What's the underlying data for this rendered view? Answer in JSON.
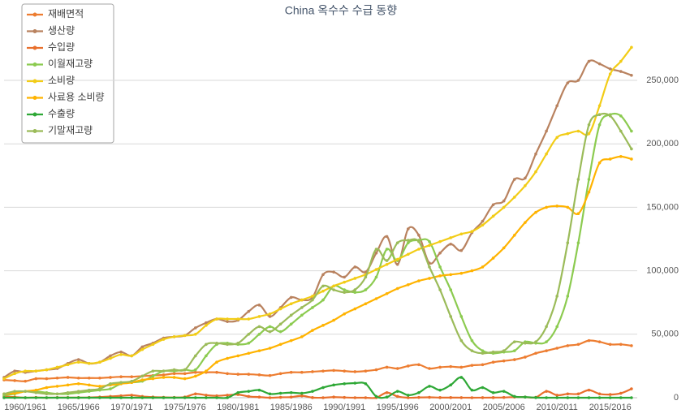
{
  "chart_data": {
    "type": "line",
    "title": "China 옥수수 수급 동향",
    "categories": [
      null,
      null,
      "1960/1961",
      null,
      null,
      null,
      null,
      "1965/1966",
      null,
      null,
      null,
      null,
      "1970/1971",
      null,
      null,
      null,
      null,
      "1975/1976",
      null,
      null,
      null,
      null,
      "1980/1981",
      null,
      null,
      null,
      null,
      "1985/1986",
      null,
      null,
      null,
      null,
      "1990/1991",
      null,
      null,
      null,
      null,
      "1995/1996",
      null,
      null,
      null,
      null,
      "2000/2001",
      null,
      null,
      null,
      null,
      "2005/2006",
      null,
      null,
      null,
      null,
      "2010/2011",
      null,
      null,
      null,
      null,
      "2015/2016",
      null,
      null
    ],
    "ylim": [
      0,
      300000
    ],
    "yticks": [
      0,
      {
        "value": 50000,
        "label": "50,000"
      },
      {
        "value": 100000,
        "label": "100,000"
      },
      {
        "value": 150000,
        "label": "150,000"
      },
      {
        "value": 200000,
        "label": "200,000"
      },
      {
        "value": 250000,
        "label": "250,000"
      }
    ],
    "grid": true,
    "legend": "top-left",
    "series": [
      {
        "name": "재배면적",
        "color": "#ed7d31",
        "values": [
          14000,
          13500,
          13000,
          15000,
          15000,
          15500,
          16000,
          15500,
          15500,
          15500,
          16000,
          16500,
          16500,
          17000,
          17500,
          18000,
          19000,
          19000,
          20000,
          20000,
          20000,
          19000,
          18500,
          18500,
          18000,
          17500,
          19000,
          20000,
          20000,
          20500,
          21000,
          21500,
          21000,
          20500,
          21000,
          22000,
          24000,
          23000,
          25000,
          26000,
          23000,
          24000,
          24500,
          24000,
          25500,
          26000,
          28000,
          29000,
          30000,
          32000,
          35000,
          37000,
          39000,
          41000,
          42000,
          45000,
          44000,
          42000,
          42000,
          41000
        ]
      },
      {
        "name": "생산량",
        "color": "#b9825f",
        "values": [
          16000,
          21000,
          20000,
          21000,
          22000,
          23000,
          27000,
          30000,
          27000,
          28000,
          33000,
          36000,
          33000,
          40000,
          43000,
          47000,
          48000,
          49000,
          55000,
          59000,
          62000,
          60000,
          61000,
          68000,
          73000,
          64000,
          71000,
          79000,
          77000,
          79000,
          97000,
          99000,
          95000,
          103000,
          99000,
          114000,
          127000,
          105000,
          133000,
          128000,
          106000,
          114000,
          121000,
          116000,
          130000,
          139000,
          152000,
          155000,
          172000,
          173000,
          192000,
          210000,
          230000,
          248000,
          250000,
          265000,
          263000,
          259000,
          257000,
          254000
        ]
      },
      {
        "name": "수입량",
        "color": "#e86f2c",
        "values": [
          1000,
          500,
          0,
          200,
          0,
          100,
          100,
          100,
          200,
          500,
          1000,
          1500,
          2000,
          1000,
          500,
          300,
          200,
          500,
          3000,
          2000,
          1500,
          2000,
          2500,
          1000,
          500,
          0,
          300,
          500,
          1500,
          100,
          0,
          500,
          200,
          0,
          0,
          0,
          4000,
          1000,
          0,
          200,
          300,
          100,
          100,
          50,
          0,
          50,
          100,
          200,
          500,
          500,
          300,
          5000,
          2000,
          3000,
          3000,
          6000,
          3000,
          2500,
          3500,
          7000
        ]
      },
      {
        "name": "이월재고량",
        "color": "#8ccb50",
        "values": [
          2000,
          3000,
          5000,
          5000,
          4000,
          3000,
          3000,
          4000,
          5000,
          6000,
          7000,
          11000,
          12000,
          13000,
          17000,
          21000,
          21000,
          22000,
          22000,
          33000,
          42000,
          43000,
          42000,
          43000,
          50000,
          56000,
          52000,
          58000,
          65000,
          71000,
          77000,
          88000,
          85000,
          83000,
          85000,
          95000,
          117000,
          108000,
          122000,
          124000,
          123000,
          103000,
          85000,
          64000,
          45000,
          37000,
          35000,
          36000,
          37000,
          44000,
          43000,
          44000,
          56000,
          80000,
          122000,
          172000,
          215000,
          223000,
          222000,
          210000
        ]
      },
      {
        "name": "소비량",
        "color": "#f2cc16",
        "values": [
          15000,
          19000,
          21000,
          21000,
          22000,
          24000,
          26000,
          28000,
          27000,
          28000,
          31000,
          34000,
          33000,
          38000,
          42000,
          46000,
          48000,
          49000,
          50000,
          57000,
          62000,
          62000,
          62000,
          62000,
          64000,
          66000,
          70000,
          74000,
          77000,
          80000,
          84000,
          88000,
          91000,
          94000,
          97000,
          101000,
          105000,
          109000,
          113000,
          117000,
          120000,
          123000,
          126000,
          129000,
          131000,
          136000,
          143000,
          150000,
          158000,
          167000,
          178000,
          192000,
          205000,
          208000,
          210000,
          208000,
          230000,
          255000,
          265000,
          276000
        ]
      },
      {
        "name": "사료용 소비량",
        "color": "#ffb300",
        "values": [
          3000,
          3500,
          5000,
          6000,
          8000,
          9000,
          10000,
          11000,
          10000,
          9000,
          10000,
          11000,
          12000,
          14000,
          15000,
          16000,
          16000,
          15000,
          17000,
          21000,
          28000,
          31000,
          33000,
          35000,
          37000,
          39000,
          42000,
          45000,
          48000,
          53000,
          57000,
          61000,
          66000,
          70000,
          74000,
          78000,
          82000,
          86000,
          89000,
          92000,
          94000,
          96000,
          97000,
          98000,
          100000,
          103000,
          110000,
          118000,
          128000,
          138000,
          146000,
          150000,
          151000,
          150000,
          145000,
          162000,
          185000,
          188000,
          190000,
          188000
        ]
      },
      {
        "name": "수출량",
        "color": "#2ea836",
        "values": [
          0,
          0,
          0,
          0,
          0,
          0,
          0,
          0,
          0,
          0,
          0,
          0,
          0,
          0,
          0,
          0,
          0,
          0,
          0,
          0,
          0,
          0,
          4000,
          5000,
          6000,
          3000,
          3500,
          4000,
          3500,
          5000,
          8000,
          10000,
          11000,
          11500,
          11000,
          1000,
          500,
          5000,
          2000,
          4000,
          9000,
          6000,
          10000,
          16000,
          6000,
          8000,
          4000,
          5000,
          1000,
          500,
          100,
          0,
          0,
          0,
          0,
          0,
          0,
          0,
          0,
          0
        ]
      },
      {
        "name": "기말재고량",
        "color": "#9bbb59",
        "values": [
          3000,
          5000,
          5000,
          4000,
          3000,
          3000,
          4000,
          5000,
          6000,
          7000,
          11000,
          12000,
          13000,
          17000,
          21000,
          21000,
          22000,
          22000,
          33000,
          42000,
          43000,
          42000,
          43000,
          50000,
          56000,
          52000,
          58000,
          65000,
          71000,
          77000,
          88000,
          85000,
          83000,
          85000,
          95000,
          117000,
          108000,
          122000,
          124000,
          123000,
          103000,
          85000,
          64000,
          45000,
          37000,
          35000,
          36000,
          37000,
          44000,
          43000,
          44000,
          56000,
          80000,
          122000,
          172000,
          215000,
          223000,
          222000,
          210000,
          196000
        ]
      }
    ]
  }
}
